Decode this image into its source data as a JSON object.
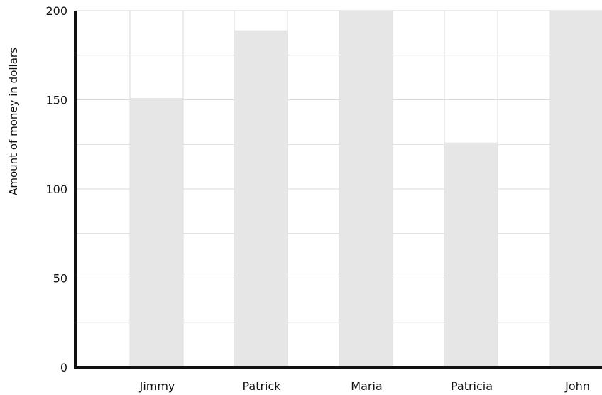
{
  "chart_data": {
    "type": "bar",
    "categories": [
      "Jimmy",
      "Patrick",
      "Maria",
      "Patricia",
      "John"
    ],
    "values": [
      151,
      189,
      200,
      126,
      200
    ],
    "xlabel": "",
    "ylabel": "Amount of money in dollars",
    "ylim": [
      0,
      200
    ],
    "y_ticks": [
      "0",
      "50",
      "100",
      "150",
      "200"
    ],
    "grid": true,
    "bar_color": "#e6e6e7",
    "grid_color": "#d9d9d9",
    "axis_color": "#111111"
  }
}
